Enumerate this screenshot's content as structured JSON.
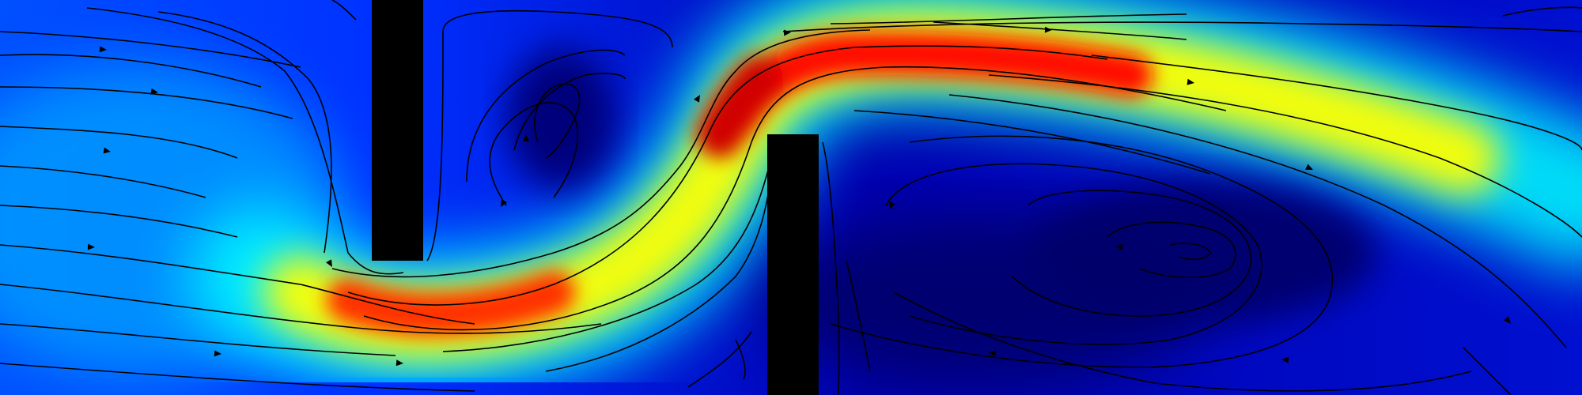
{
  "figure": {
    "kind": "flow-velocity-magnitude-with-streamlines",
    "colormap": "jet",
    "colormap_stops": [
      "#00007f",
      "#0000ff",
      "#007fff",
      "#00ffff",
      "#7fff7f",
      "#ffff00",
      "#ff7f00",
      "#ff0000",
      "#7f0000"
    ],
    "obstacle_color": "#000000",
    "streamline_color": "#000000",
    "legend": "none",
    "axes": "none"
  }
}
